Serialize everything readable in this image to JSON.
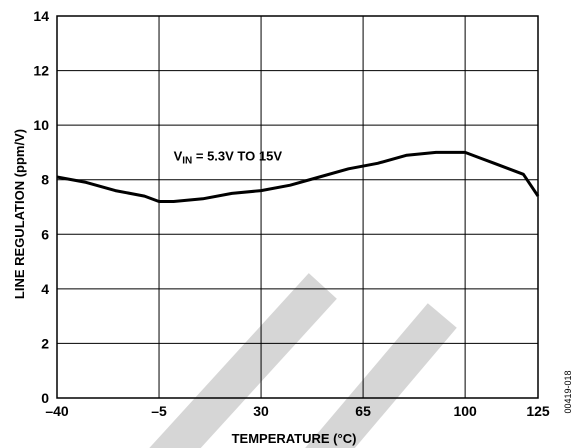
{
  "chart_data": {
    "type": "line",
    "xlabel": "TEMPERATURE (°C)",
    "ylabel": "LINE REGULATION (ppm/V)",
    "xlim": [
      -40,
      125
    ],
    "ylim": [
      0,
      14
    ],
    "x_ticks": [
      "–40",
      "–5",
      "30",
      "65",
      "100",
      "125"
    ],
    "x_tick_values": [
      -40,
      -5,
      30,
      65,
      100,
      125
    ],
    "y_ticks": [
      "0",
      "2",
      "4",
      "6",
      "8",
      "10",
      "12",
      "14"
    ],
    "y_tick_values": [
      0,
      2,
      4,
      6,
      8,
      10,
      12,
      14
    ],
    "grid": true,
    "annotation": {
      "prefix": "V",
      "subscript": "IN",
      "suffix": " = 5.3V TO 15V",
      "x": 0,
      "y": 8.7
    },
    "figure_id": "00419-018",
    "series": [
      {
        "color": "#000000",
        "x": [
          -40,
          -30,
          -20,
          -10,
          -5,
          0,
          10,
          20,
          30,
          40,
          50,
          60,
          70,
          80,
          90,
          100,
          105,
          110,
          120,
          125
        ],
        "y": [
          8.1,
          7.9,
          7.6,
          7.4,
          7.2,
          7.2,
          7.3,
          7.5,
          7.6,
          7.8,
          8.1,
          8.4,
          8.6,
          8.9,
          9.0,
          9.0,
          8.8,
          8.6,
          8.2,
          7.4
        ]
      }
    ]
  },
  "watermark": {
    "color": "#d6d6d6"
  }
}
